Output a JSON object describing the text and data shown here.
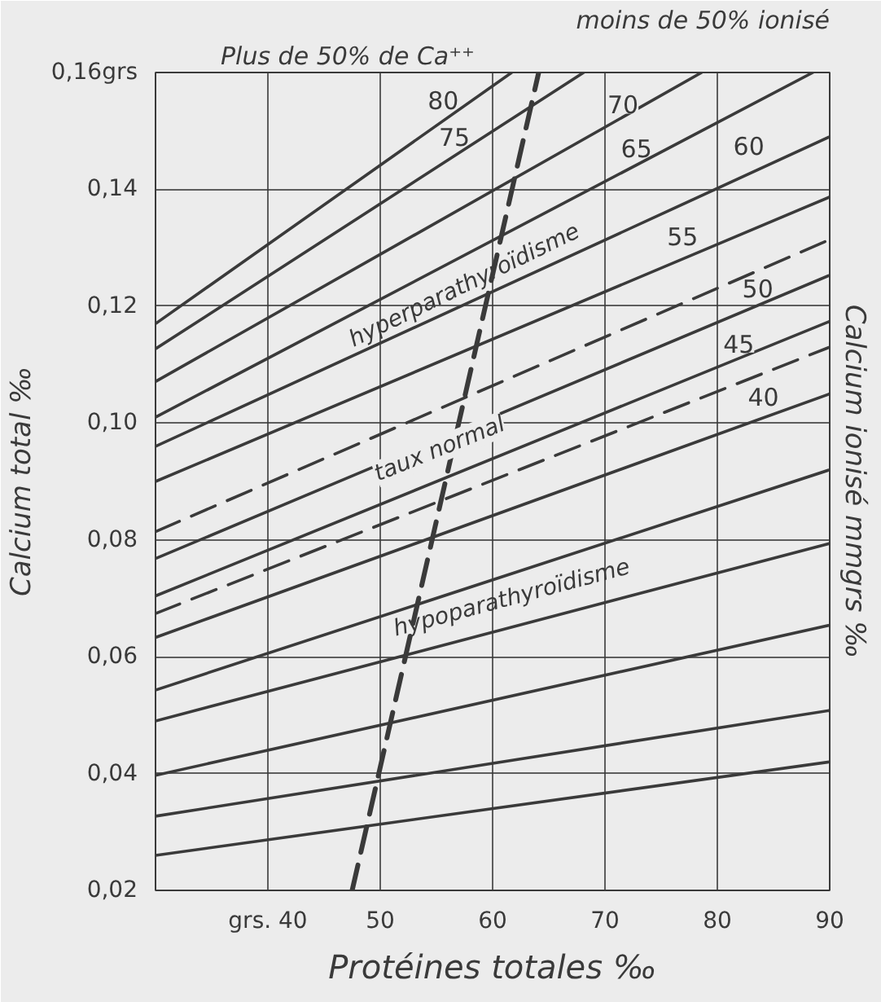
{
  "chart_data": {
    "type": "line",
    "xlabel": "Protéines totales ‰",
    "ylabel": "Calcium total ‰",
    "y2label": "Calcium ionisé mmgrs ‰",
    "x": [
      30,
      90
    ],
    "xlim": [
      30,
      90
    ],
    "ylim": [
      0.02,
      0.16
    ],
    "xticks": [
      {
        "value": 40,
        "label": "grs. 40"
      },
      50,
      60,
      70,
      80,
      90
    ],
    "yticks": [
      {
        "value": 0.02,
        "label": "0,02"
      },
      {
        "value": 0.04,
        "label": "0,04"
      },
      {
        "value": 0.06,
        "label": "0,06"
      },
      {
        "value": 0.08,
        "label": "0,08"
      },
      {
        "value": 0.1,
        "label": "0,10"
      },
      {
        "value": 0.12,
        "label": "0,12"
      },
      {
        "value": 0.14,
        "label": "0,14"
      },
      {
        "value": 0.16,
        "label": "0,16grs"
      }
    ],
    "grid": true,
    "marker": "none",
    "series": [
      {
        "color": "#3a3a3a",
        "x": [
          30,
          61.7
        ],
        "values": [
          0.117,
          0.16
        ]
      },
      {
        "color": "#3a3a3a",
        "x": [
          30,
          68.1
        ],
        "values": [
          0.1127,
          0.16
        ]
      },
      {
        "color": "#3a3a3a",
        "x": [
          30,
          78.6
        ],
        "values": [
          0.1071,
          0.16
        ]
      },
      {
        "color": "#3a3a3a",
        "x": [
          30,
          88.5
        ],
        "values": [
          0.101,
          0.16
        ]
      },
      {
        "color": "#3a3a3a",
        "values": [
          0.096,
          0.149
        ]
      },
      {
        "color": "#3a3a3a",
        "values": [
          0.09,
          0.1387
        ]
      },
      {
        "color": "#3a3a3a",
        "values": [
          0.0814,
          0.1314
        ],
        "line_style": "dashed"
      },
      {
        "color": "#3a3a3a",
        "values": [
          0.0768,
          0.1253
        ]
      },
      {
        "color": "#3a3a3a",
        "values": [
          0.0704,
          0.1174
        ]
      },
      {
        "color": "#3a3a3a",
        "values": [
          0.0674,
          0.113
        ],
        "line_style": "dashed"
      },
      {
        "color": "#3a3a3a",
        "values": [
          0.0633,
          0.105
        ]
      },
      {
        "color": "#3a3a3a",
        "values": [
          0.0543,
          0.092
        ]
      },
      {
        "color": "#3a3a3a",
        "values": [
          0.049,
          0.0794
        ]
      },
      {
        "color": "#3a3a3a",
        "values": [
          0.0397,
          0.0654
        ]
      },
      {
        "color": "#3a3a3a",
        "values": [
          0.0327,
          0.0508
        ]
      },
      {
        "color": "#3a3a3a",
        "values": [
          0.026,
          0.042
        ]
      },
      {
        "color": "#3a3a3a",
        "x": [
          47.5,
          64.1
        ],
        "values": [
          0.02,
          0.16
        ],
        "line_style": "dashed"
      }
    ],
    "annotations": [
      "Plus de 50% de Ca⁺⁺",
      "moins de 50% ionisé",
      "80",
      "75",
      "70",
      "65",
      "60",
      "55",
      "50",
      "45",
      "40",
      "hyperparathyroïdisme",
      "taux normal",
      "hypoparathyroïdisme"
    ]
  }
}
